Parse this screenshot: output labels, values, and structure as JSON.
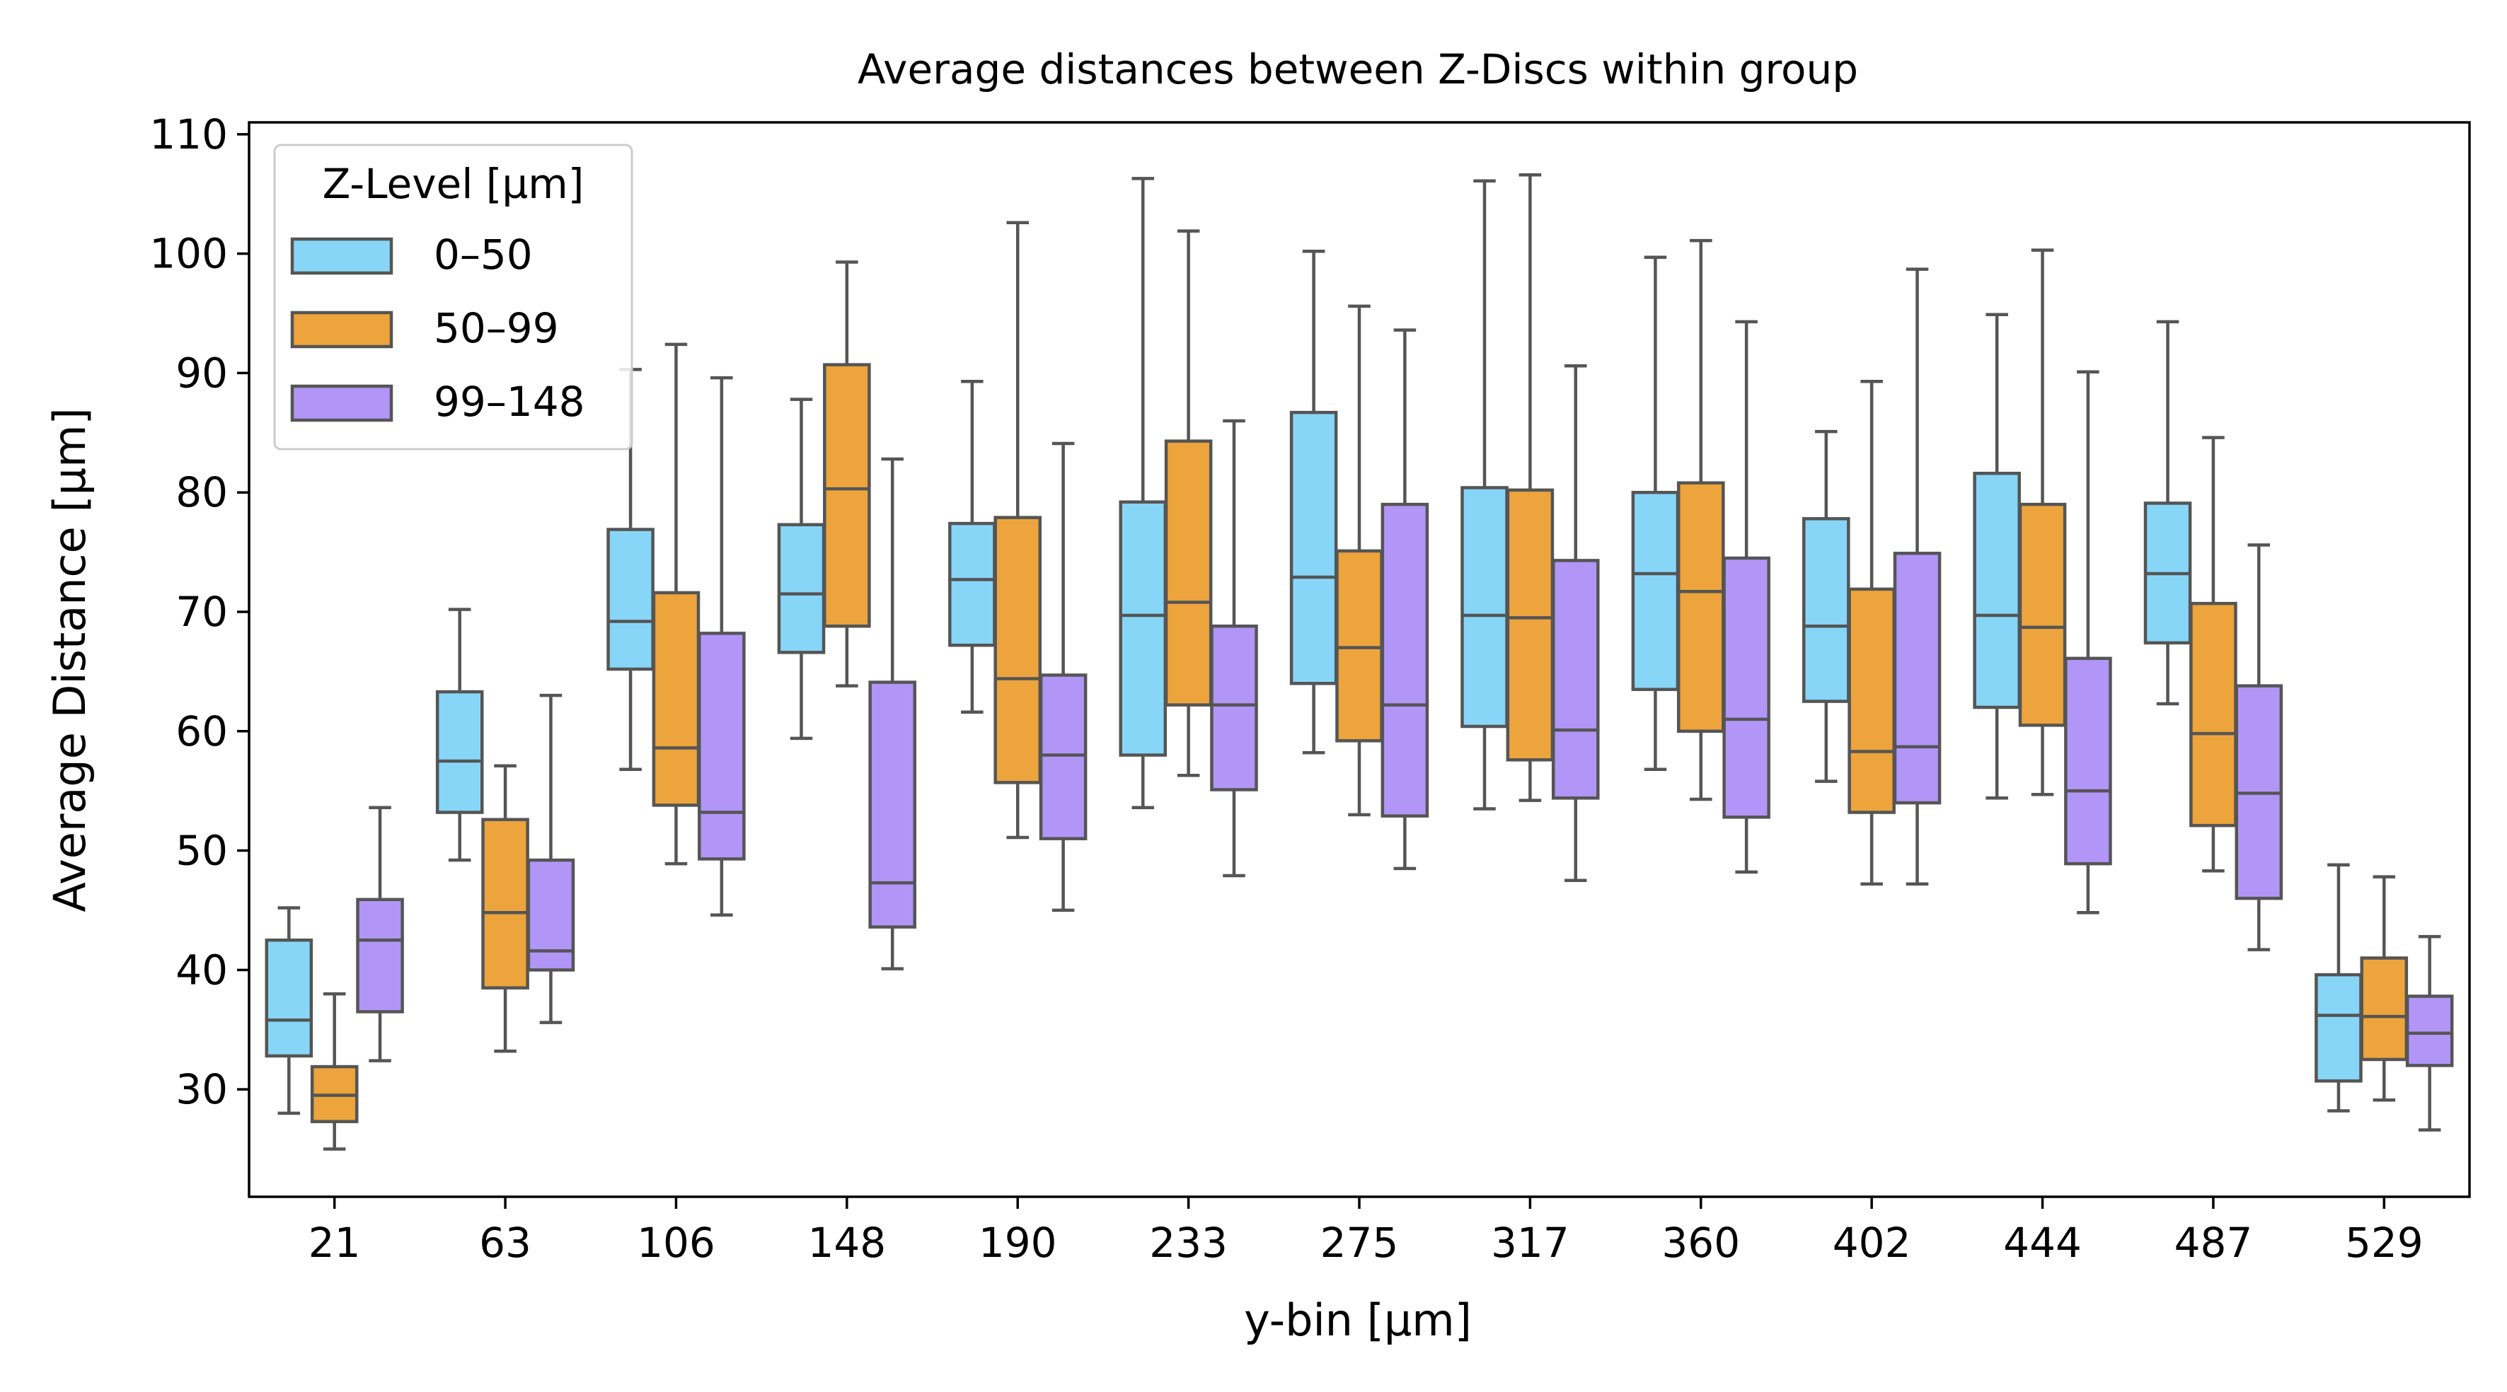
{
  "chart_data": {
    "type": "box",
    "title": "Average distances between Z-Discs within group",
    "xlabel": "y-bin [µm]",
    "ylabel": "Average Distance [µm]",
    "ylim": [
      21,
      111
    ],
    "yticks": [
      30,
      40,
      50,
      60,
      70,
      80,
      90,
      100,
      110
    ],
    "categories": [
      "21",
      "63",
      "106",
      "148",
      "190",
      "233",
      "275",
      "317",
      "360",
      "402",
      "444",
      "487",
      "529"
    ],
    "legend": {
      "title": "Z-Level [µm]",
      "placement": "top-left"
    },
    "series": [
      {
        "name": "0–50",
        "color": "#87d6f7",
        "boxes": [
          {
            "wlo": 28,
            "q1": 32.8,
            "med": 35.8,
            "q3": 42.5,
            "whi": 45.2
          },
          {
            "wlo": 49.2,
            "q1": 53.2,
            "med": 57.5,
            "q3": 63.3,
            "whi": 70.2
          },
          {
            "wlo": 56.8,
            "q1": 65.2,
            "med": 69.2,
            "q3": 76.9,
            "whi": 90.3
          },
          {
            "wlo": 59.4,
            "q1": 66.6,
            "med": 71.5,
            "q3": 77.3,
            "whi": 87.8
          },
          {
            "wlo": 61.6,
            "q1": 67.2,
            "med": 72.7,
            "q3": 77.4,
            "whi": 89.3
          },
          {
            "wlo": 53.6,
            "q1": 58.0,
            "med": 69.7,
            "q3": 79.2,
            "whi": 106.3
          },
          {
            "wlo": 58.2,
            "q1": 64.0,
            "med": 72.9,
            "q3": 86.7,
            "whi": 100.2
          },
          {
            "wlo": 53.5,
            "q1": 60.4,
            "med": 69.7,
            "q3": 80.4,
            "whi": 106.1
          },
          {
            "wlo": 56.8,
            "q1": 63.5,
            "med": 73.2,
            "q3": 80.0,
            "whi": 99.7
          },
          {
            "wlo": 55.8,
            "q1": 62.5,
            "med": 68.8,
            "q3": 77.8,
            "whi": 85.1
          },
          {
            "wlo": 54.4,
            "q1": 62.0,
            "med": 69.7,
            "q3": 81.6,
            "whi": 94.9
          },
          {
            "wlo": 62.3,
            "q1": 67.4,
            "med": 73.2,
            "q3": 79.1,
            "whi": 94.3
          },
          {
            "wlo": 28.2,
            "q1": 30.7,
            "med": 36.2,
            "q3": 39.6,
            "whi": 48.8
          }
        ]
      },
      {
        "name": "50–99",
        "color": "#eda43c",
        "boxes": [
          {
            "wlo": 25.0,
            "q1": 27.3,
            "med": 29.5,
            "q3": 31.9,
            "whi": 38.0
          },
          {
            "wlo": 33.2,
            "q1": 38.5,
            "med": 44.8,
            "q3": 52.6,
            "whi": 57.1
          },
          {
            "wlo": 48.9,
            "q1": 53.8,
            "med": 58.6,
            "q3": 71.6,
            "whi": 92.4
          },
          {
            "wlo": 63.8,
            "q1": 68.8,
            "med": 80.3,
            "q3": 90.7,
            "whi": 99.3
          },
          {
            "wlo": 51.1,
            "q1": 55.7,
            "med": 64.4,
            "q3": 77.9,
            "whi": 102.6
          },
          {
            "wlo": 56.3,
            "q1": 62.2,
            "med": 70.8,
            "q3": 84.3,
            "whi": 101.9
          },
          {
            "wlo": 53.0,
            "q1": 59.2,
            "med": 67.0,
            "q3": 75.1,
            "whi": 95.6
          },
          {
            "wlo": 54.2,
            "q1": 57.6,
            "med": 69.5,
            "q3": 80.2,
            "whi": 106.6
          },
          {
            "wlo": 54.3,
            "q1": 60.0,
            "med": 71.7,
            "q3": 80.8,
            "whi": 101.1
          },
          {
            "wlo": 47.2,
            "q1": 53.2,
            "med": 58.3,
            "q3": 71.9,
            "whi": 89.3
          },
          {
            "wlo": 54.7,
            "q1": 60.5,
            "med": 68.7,
            "q3": 79.0,
            "whi": 100.3
          },
          {
            "wlo": 48.3,
            "q1": 52.1,
            "med": 59.8,
            "q3": 70.7,
            "whi": 84.6
          },
          {
            "wlo": 29.1,
            "q1": 32.5,
            "med": 36.1,
            "q3": 41.0,
            "whi": 47.8
          }
        ]
      },
      {
        "name": "99–148",
        "color": "#b196f7",
        "boxes": [
          {
            "wlo": 32.4,
            "q1": 36.5,
            "med": 42.5,
            "q3": 45.9,
            "whi": 53.6
          },
          {
            "wlo": 35.6,
            "q1": 40.0,
            "med": 41.6,
            "q3": 49.2,
            "whi": 63.0
          },
          {
            "wlo": 44.6,
            "q1": 49.3,
            "med": 53.2,
            "q3": 68.2,
            "whi": 89.6
          },
          {
            "wlo": 40.1,
            "q1": 43.6,
            "med": 47.3,
            "q3": 64.1,
            "whi": 82.8
          },
          {
            "wlo": 45.0,
            "q1": 51.0,
            "med": 58.0,
            "q3": 64.7,
            "whi": 84.1
          },
          {
            "wlo": 47.9,
            "q1": 55.1,
            "med": 62.2,
            "q3": 68.8,
            "whi": 86.0
          },
          {
            "wlo": 48.5,
            "q1": 52.9,
            "med": 62.2,
            "q3": 79.0,
            "whi": 93.6
          },
          {
            "wlo": 47.5,
            "q1": 54.4,
            "med": 60.1,
            "q3": 74.3,
            "whi": 90.6
          },
          {
            "wlo": 48.2,
            "q1": 52.8,
            "med": 61.0,
            "q3": 74.5,
            "whi": 94.3
          },
          {
            "wlo": 47.2,
            "q1": 54.0,
            "med": 58.7,
            "q3": 74.9,
            "whi": 98.7
          },
          {
            "wlo": 44.8,
            "q1": 48.9,
            "med": 55.0,
            "q3": 66.1,
            "whi": 90.1
          },
          {
            "wlo": 41.7,
            "q1": 46.0,
            "med": 54.8,
            "q3": 63.8,
            "whi": 75.6
          },
          {
            "wlo": 26.6,
            "q1": 32.0,
            "med": 34.7,
            "q3": 37.8,
            "whi": 42.8
          }
        ]
      }
    ]
  }
}
